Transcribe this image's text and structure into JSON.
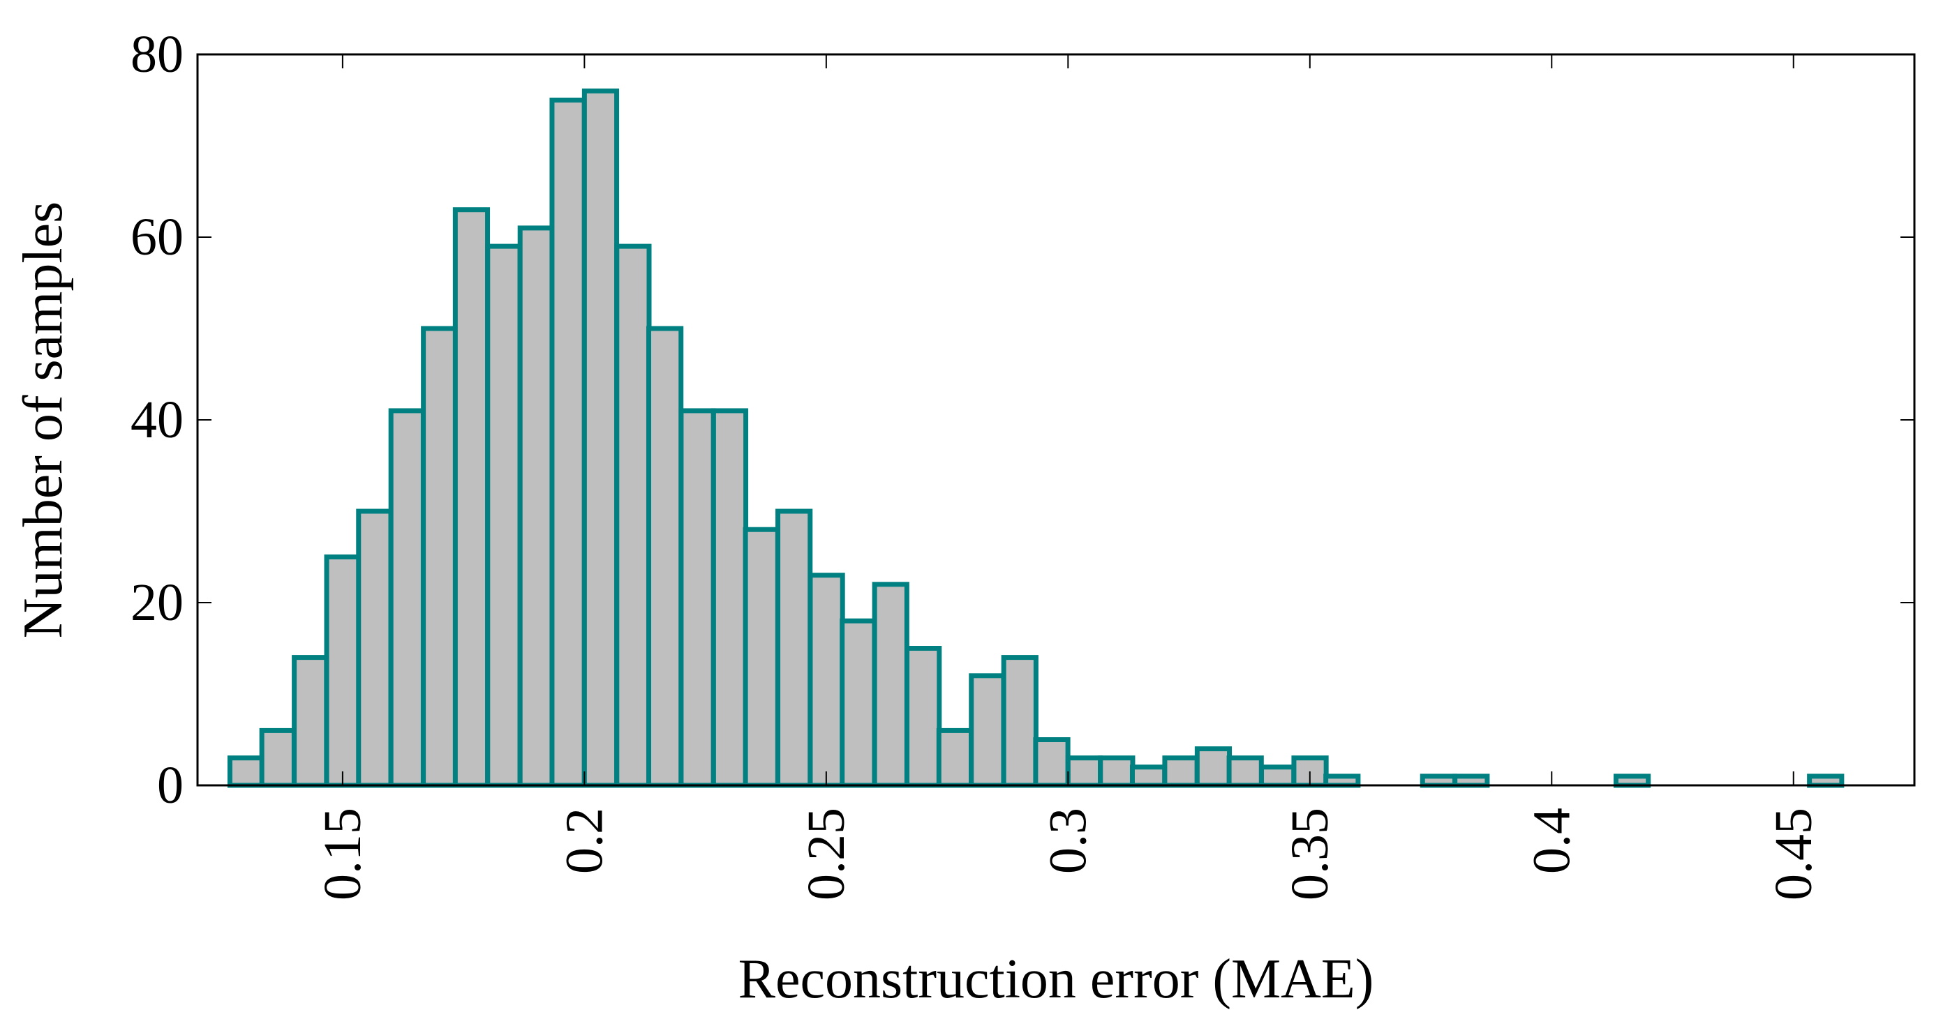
{
  "chart_data": {
    "type": "bar",
    "title": "",
    "xlabel": "Reconstruction error (MAE)",
    "ylabel": "Number of samples",
    "xlim": [
      0.12,
      0.475
    ],
    "ylim": [
      0,
      80
    ],
    "bin_width": 0.00667,
    "x_ticks": [
      {
        "value": 0.15,
        "label": "0.15"
      },
      {
        "value": 0.2,
        "label": "0.2"
      },
      {
        "value": 0.25,
        "label": "0.25"
      },
      {
        "value": 0.3,
        "label": "0.3"
      },
      {
        "value": 0.35,
        "label": "0.35"
      },
      {
        "value": 0.4,
        "label": "0.4"
      },
      {
        "value": 0.45,
        "label": "0.45"
      }
    ],
    "y_ticks": [
      {
        "value": 0,
        "label": "0"
      },
      {
        "value": 20,
        "label": "20"
      },
      {
        "value": 40,
        "label": "40"
      },
      {
        "value": 60,
        "label": "60"
      },
      {
        "value": 80,
        "label": "80"
      }
    ],
    "bin_starts": [
      0.1267,
      0.1333,
      0.14,
      0.1467,
      0.1533,
      0.16,
      0.1667,
      0.1733,
      0.18,
      0.1867,
      0.1933,
      0.2,
      0.2067,
      0.2133,
      0.22,
      0.2267,
      0.2333,
      0.24,
      0.2467,
      0.2533,
      0.26,
      0.2667,
      0.2733,
      0.28,
      0.2867,
      0.2933,
      0.3,
      0.3067,
      0.3133,
      0.32,
      0.3267,
      0.3333,
      0.34,
      0.3467,
      0.3533,
      0.36,
      0.3667,
      0.3733,
      0.38,
      0.3867,
      0.3933,
      0.4,
      0.4067,
      0.4133,
      0.42,
      0.4267,
      0.4333,
      0.44,
      0.4467,
      0.4533,
      0.46
    ],
    "values": [
      3,
      6,
      14,
      25,
      30,
      41,
      50,
      63,
      59,
      61,
      75,
      76,
      59,
      50,
      41,
      41,
      28,
      30,
      23,
      18,
      22,
      15,
      6,
      12,
      14,
      5,
      3,
      3,
      2,
      3,
      4,
      3,
      2,
      3,
      1,
      0,
      0,
      1,
      1,
      0,
      0,
      0,
      0,
      1,
      0,
      0,
      0,
      0,
      0,
      1,
      0
    ],
    "grid": false,
    "colors": {
      "bar_fill": "#bfbfbf",
      "bar_edge": "#008080",
      "axis": "#000000"
    }
  }
}
